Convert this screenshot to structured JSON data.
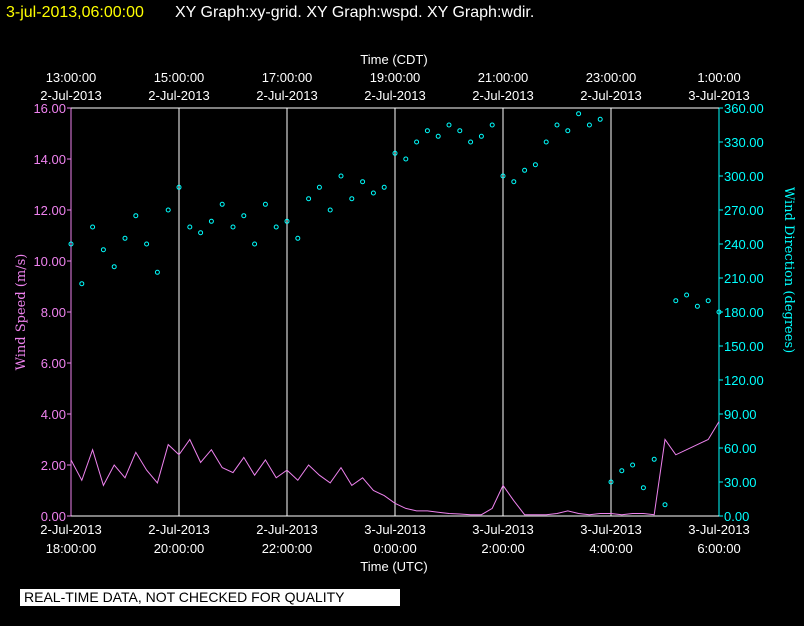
{
  "header": {
    "timestamp": "3-jul-2013,06:00:00",
    "graphs": "XY Graph:xy-grid.  XY Graph:wspd.  XY Graph:wdir."
  },
  "notice": "REAL-TIME DATA, NOT CHECKED FOR QUALITY",
  "colors": {
    "speed": "#ee82ee",
    "direction": "#00ffff",
    "grid": "#ffffff",
    "timestamp": "#ffff00"
  },
  "chart_data": {
    "type": "scatter",
    "xlabel_top": "Time (CDT)",
    "xlabel_bottom": "Time (UTC)",
    "ylabel_left": "Wind Speed (m/s)",
    "ylabel_right": "Wind Direction (degrees)",
    "x_unit": "hours since 2-Jul-2013 18:00 UTC",
    "xlim": [
      0,
      12
    ],
    "ylim_left": [
      0,
      16
    ],
    "ylim_right": [
      0,
      360
    ],
    "grid": "vertical lines every 2 hours",
    "top_ticks": [
      {
        "x": 0,
        "time": "13:00:00",
        "date": "2-Jul-2013"
      },
      {
        "x": 2,
        "time": "15:00:00",
        "date": "2-Jul-2013"
      },
      {
        "x": 4,
        "time": "17:00:00",
        "date": "2-Jul-2013"
      },
      {
        "x": 6,
        "time": "19:00:00",
        "date": "2-Jul-2013"
      },
      {
        "x": 8,
        "time": "21:00:00",
        "date": "2-Jul-2013"
      },
      {
        "x": 10,
        "time": "23:00:00",
        "date": "2-Jul-2013"
      },
      {
        "x": 12,
        "time": "1:00:00",
        "date": "3-Jul-2013"
      }
    ],
    "bottom_ticks": [
      {
        "x": 0,
        "date": "2-Jul-2013",
        "time": "18:00:00"
      },
      {
        "x": 2,
        "date": "2-Jul-2013",
        "time": "20:00:00"
      },
      {
        "x": 4,
        "date": "2-Jul-2013",
        "time": "22:00:00"
      },
      {
        "x": 6,
        "date": "3-Jul-2013",
        "time": "0:00:00"
      },
      {
        "x": 8,
        "date": "3-Jul-2013",
        "time": "2:00:00"
      },
      {
        "x": 10,
        "date": "3-Jul-2013",
        "time": "4:00:00"
      },
      {
        "x": 12,
        "date": "3-Jul-2013",
        "time": "6:00:00"
      }
    ],
    "left_ticks": [
      "0.00",
      "2.00",
      "4.00",
      "6.00",
      "8.00",
      "10.00",
      "12.00",
      "14.00",
      "16.00"
    ],
    "right_ticks": [
      "0.00",
      "30.00",
      "60.00",
      "90.00",
      "120.00",
      "150.00",
      "180.00",
      "210.00",
      "240.00",
      "270.00",
      "300.00",
      "330.00",
      "360.00"
    ],
    "series": [
      {
        "name": "Wind Speed",
        "style": "line",
        "axis": "left",
        "x": [
          0,
          0.2,
          0.4,
          0.6,
          0.8,
          1.0,
          1.2,
          1.4,
          1.6,
          1.8,
          2.0,
          2.2,
          2.4,
          2.6,
          2.8,
          3.0,
          3.2,
          3.4,
          3.6,
          3.8,
          4.0,
          4.2,
          4.4,
          4.6,
          4.8,
          5.0,
          5.2,
          5.4,
          5.6,
          5.8,
          6.0,
          6.2,
          6.4,
          6.6,
          6.8,
          7.0,
          7.2,
          7.4,
          7.6,
          7.8,
          8.0,
          8.2,
          8.4,
          8.6,
          8.8,
          9.0,
          9.2,
          9.4,
          9.6,
          9.8,
          10.0,
          10.2,
          10.4,
          10.6,
          10.8,
          11.0,
          11.2,
          11.4,
          11.6,
          11.8,
          12.0
        ],
        "values": [
          2.2,
          1.4,
          2.6,
          1.2,
          2.0,
          1.5,
          2.5,
          1.8,
          1.3,
          2.8,
          2.4,
          3.0,
          2.1,
          2.6,
          1.9,
          1.7,
          2.3,
          1.6,
          2.2,
          1.5,
          1.8,
          1.4,
          2.0,
          1.6,
          1.3,
          1.9,
          1.2,
          1.5,
          1.0,
          0.8,
          0.5,
          0.3,
          0.2,
          0.2,
          0.15,
          0.1,
          0.08,
          0.05,
          0.05,
          0.3,
          1.2,
          0.6,
          0.05,
          0.05,
          0.05,
          0.1,
          0.2,
          0.1,
          0.05,
          0.1,
          0.1,
          0.05,
          0.1,
          0.1,
          0.05,
          3.0,
          2.4,
          2.6,
          2.8,
          3.0,
          3.7
        ]
      },
      {
        "name": "Wind Direction",
        "style": "points",
        "axis": "right",
        "x": [
          0,
          0.2,
          0.4,
          0.6,
          0.8,
          1.0,
          1.2,
          1.4,
          1.6,
          1.8,
          2.0,
          2.2,
          2.4,
          2.6,
          2.8,
          3.0,
          3.2,
          3.4,
          3.6,
          3.8,
          4.0,
          4.2,
          4.4,
          4.6,
          4.8,
          5.0,
          5.2,
          5.4,
          5.6,
          5.8,
          6.0,
          6.2,
          6.4,
          6.6,
          6.8,
          7.0,
          7.2,
          7.4,
          7.6,
          7.8,
          8.0,
          8.2,
          8.4,
          8.6,
          8.8,
          9.0,
          9.2,
          9.4,
          9.6,
          9.8,
          10.0,
          10.2,
          10.4,
          10.6,
          10.8,
          11.0,
          11.2,
          11.4,
          11.6,
          11.8,
          12.0
        ],
        "values": [
          240,
          205,
          255,
          235,
          220,
          245,
          265,
          240,
          215,
          270,
          290,
          255,
          250,
          260,
          275,
          255,
          265,
          240,
          275,
          255,
          260,
          245,
          280,
          290,
          270,
          300,
          280,
          295,
          285,
          290,
          320,
          315,
          330,
          340,
          335,
          345,
          340,
          330,
          335,
          345,
          300,
          295,
          305,
          310,
          330,
          345,
          340,
          355,
          345,
          350,
          30,
          40,
          45,
          25,
          50,
          10,
          190,
          195,
          185,
          190,
          180
        ]
      }
    ]
  }
}
